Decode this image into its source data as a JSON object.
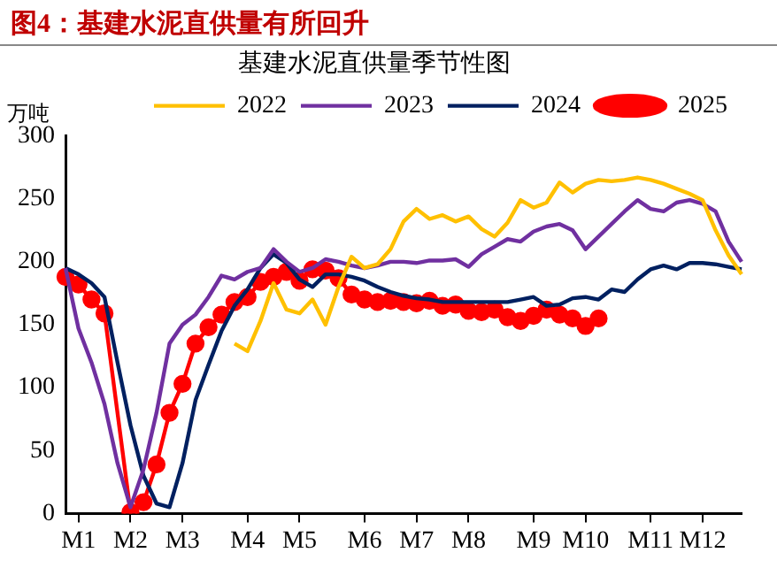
{
  "chart_data": {
    "type": "line",
    "title": "图4：基建水泥直供量有所回升",
    "subtitle": "基建水泥直供量季节性图",
    "ylabel": "万吨",
    "categories": [
      null,
      "M1",
      null,
      null,
      null,
      "M2",
      null,
      null,
      null,
      "M3",
      null,
      null,
      null,
      null,
      "M4",
      null,
      null,
      null,
      "M5",
      null,
      null,
      null,
      null,
      "M6",
      null,
      null,
      null,
      "M7",
      null,
      null,
      null,
      "M8",
      null,
      null,
      null,
      null,
      "M9",
      null,
      null,
      null,
      "M10",
      null,
      null,
      null,
      null,
      "M11",
      null,
      null,
      null,
      "M12",
      null,
      null,
      null
    ],
    "series": [
      {
        "name": "2022",
        "color": "#ffc000",
        "marker": "none",
        "values": [
          null,
          null,
          null,
          null,
          null,
          null,
          null,
          null,
          null,
          null,
          null,
          null,
          null,
          135,
          129,
          153,
          183,
          162,
          159,
          170,
          150,
          180,
          204,
          195,
          198,
          210,
          232,
          242,
          234,
          237,
          232,
          236,
          226,
          220,
          231,
          249,
          243,
          247,
          263,
          255,
          262,
          265,
          264,
          265,
          267,
          265,
          262,
          258,
          254,
          249,
          225,
          205,
          190
        ]
      },
      {
        "name": "2023",
        "color": "#7030a0",
        "marker": "none",
        "values": [
          195,
          147,
          120,
          87,
          40,
          5,
          35,
          80,
          135,
          150,
          158,
          172,
          189,
          186,
          192,
          195,
          210,
          200,
          192,
          195,
          202,
          200,
          197,
          195,
          197,
          200,
          200,
          199,
          201,
          201,
          202,
          196,
          206,
          212,
          218,
          216,
          224,
          228,
          230,
          225,
          210,
          220,
          230,
          240,
          249,
          242,
          240,
          247,
          249,
          246,
          240,
          216,
          200
        ]
      },
      {
        "name": "2024",
        "color": "#002060",
        "marker": "none",
        "values": [
          195,
          190,
          183,
          172,
          120,
          70,
          30,
          8,
          5,
          40,
          90,
          118,
          145,
          165,
          178,
          195,
          206,
          199,
          186,
          180,
          190,
          190,
          188,
          185,
          180,
          176,
          173,
          171,
          170,
          168,
          168,
          168,
          168,
          168,
          168,
          170,
          172,
          165,
          166,
          171,
          172,
          170,
          178,
          176,
          186,
          194,
          197,
          194,
          199,
          199,
          198,
          196,
          194
        ]
      },
      {
        "name": "2025",
        "color": "#ff0000",
        "marker": "circle",
        "values": [
          188,
          182,
          170,
          159,
          null,
          1,
          9,
          39,
          80,
          103,
          135,
          148,
          158,
          168,
          172,
          184,
          188,
          192,
          185,
          194,
          193,
          187,
          174,
          170,
          168,
          169,
          168,
          167,
          169,
          165,
          166,
          161,
          160,
          162,
          156,
          153,
          157,
          162,
          158,
          155,
          149,
          155,
          null,
          null,
          null,
          null,
          null,
          null,
          null,
          null,
          null,
          null,
          null
        ]
      }
    ],
    "ylim": [
      0,
      300
    ],
    "yticks": [
      0,
      50,
      100,
      150,
      200,
      250,
      300
    ],
    "grid": false,
    "legend": "top"
  }
}
